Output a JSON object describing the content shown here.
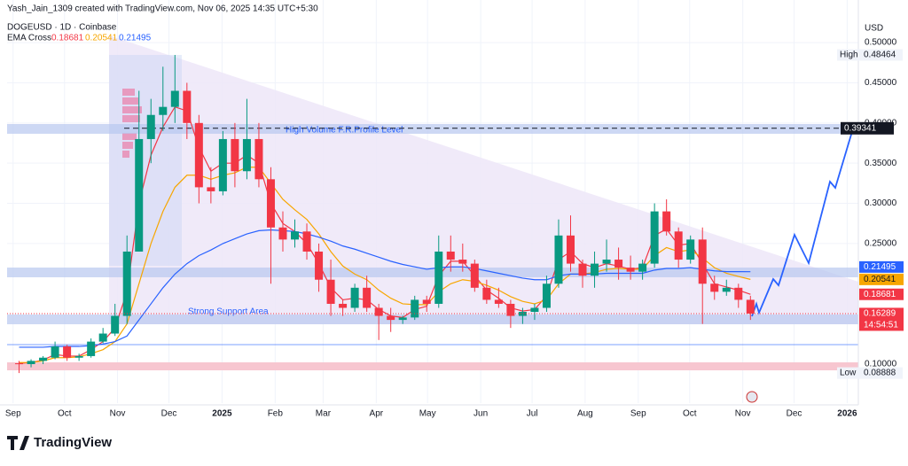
{
  "header": {
    "credit": "Yash_Jain_1309 created with TradingView.com, Nov 06, 2025 14:35 UTC+5:30",
    "symbol": "DOGEUSD · 1D · Coinbase",
    "indicator": "EMA Cross"
  },
  "chart_data": {
    "type": "candlestick",
    "currency": "USD",
    "categories": [
      null,
      null,
      null,
      null,
      null,
      null,
      null,
      null,
      null,
      null,
      null,
      null,
      null,
      null,
      null,
      null,
      null,
      null,
      null,
      null,
      null,
      null,
      null,
      null,
      null,
      null,
      null,
      null,
      null,
      null,
      null,
      null,
      null,
      null,
      null,
      null,
      null,
      null,
      null,
      null,
      null,
      null,
      null,
      null,
      null,
      null,
      null,
      null,
      null,
      null,
      null,
      null,
      null,
      null,
      null,
      null,
      null,
      null,
      null,
      null,
      null,
      null
    ],
    "open": [
      0.101,
      0.1,
      0.104,
      0.108,
      0.122,
      0.108,
      0.11,
      0.128,
      0.138,
      0.16,
      0.24,
      0.38,
      0.41,
      0.42,
      0.44,
      0.4,
      0.32,
      0.315,
      0.38,
      0.34,
      0.38,
      0.33,
      0.27,
      0.255,
      0.265,
      0.24,
      0.205,
      0.175,
      0.17,
      0.195,
      0.17,
      0.16,
      0.155,
      0.158,
      0.18,
      0.175,
      0.24,
      0.23,
      0.225,
      0.195,
      0.18,
      0.175,
      0.16,
      0.165,
      0.17,
      0.2,
      0.26,
      0.225,
      0.21,
      0.225,
      0.23,
      0.22,
      0.215,
      0.225,
      0.29,
      0.265,
      0.23,
      0.255,
      0.2,
      0.19,
      0.195,
      0.18
    ],
    "high": [
      0.104,
      0.106,
      0.11,
      0.128,
      0.124,
      0.113,
      0.132,
      0.145,
      0.175,
      0.26,
      0.44,
      0.43,
      0.47,
      0.48464,
      0.45,
      0.41,
      0.345,
      0.39,
      0.4,
      0.43,
      0.4,
      0.345,
      0.29,
      0.28,
      0.275,
      0.25,
      0.23,
      0.18,
      0.2,
      0.21,
      0.175,
      0.17,
      0.16,
      0.185,
      0.185,
      0.26,
      0.26,
      0.25,
      0.23,
      0.205,
      0.195,
      0.18,
      0.17,
      0.175,
      0.21,
      0.28,
      0.285,
      0.23,
      0.24,
      0.255,
      0.245,
      0.235,
      0.23,
      0.3,
      0.305,
      0.27,
      0.26,
      0.27,
      0.21,
      0.205,
      0.2,
      0.185
    ],
    "low": [
      0.08888,
      0.096,
      0.1,
      0.106,
      0.104,
      0.104,
      0.108,
      0.126,
      0.135,
      0.15,
      0.24,
      0.35,
      0.39,
      0.4,
      0.38,
      0.3,
      0.3,
      0.31,
      0.32,
      0.33,
      0.32,
      0.2,
      0.24,
      0.245,
      0.23,
      0.19,
      0.16,
      0.16,
      0.165,
      0.165,
      0.13,
      0.14,
      0.15,
      0.155,
      0.165,
      0.17,
      0.215,
      0.215,
      0.19,
      0.175,
      0.17,
      0.145,
      0.15,
      0.155,
      0.165,
      0.195,
      0.215,
      0.195,
      0.195,
      0.215,
      0.205,
      0.205,
      0.205,
      0.22,
      0.26,
      0.22,
      0.225,
      0.15,
      0.18,
      0.185,
      0.17,
      0.155
    ],
    "close": [
      0.1,
      0.104,
      0.108,
      0.122,
      0.108,
      0.11,
      0.128,
      0.138,
      0.16,
      0.24,
      0.38,
      0.41,
      0.42,
      0.44,
      0.4,
      0.32,
      0.315,
      0.38,
      0.34,
      0.38,
      0.33,
      0.27,
      0.255,
      0.265,
      0.24,
      0.205,
      0.175,
      0.17,
      0.195,
      0.17,
      0.16,
      0.155,
      0.158,
      0.18,
      0.175,
      0.24,
      0.23,
      0.225,
      0.195,
      0.18,
      0.175,
      0.16,
      0.165,
      0.17,
      0.2,
      0.26,
      0.225,
      0.21,
      0.225,
      0.23,
      0.22,
      0.215,
      0.225,
      0.29,
      0.265,
      0.23,
      0.255,
      0.2,
      0.19,
      0.195,
      0.18,
      0.16289
    ],
    "up_color": "#089981",
    "down_color": "#f23645",
    "ema_lines": [
      {
        "color": "#f23645",
        "values": [
          0.101,
          0.102,
          0.105,
          0.112,
          0.11,
          0.11,
          0.118,
          0.128,
          0.145,
          0.19,
          0.3,
          0.36,
          0.395,
          0.42,
          0.415,
          0.37,
          0.34,
          0.35,
          0.35,
          0.36,
          0.35,
          0.3,
          0.275,
          0.265,
          0.25,
          0.225,
          0.195,
          0.18,
          0.182,
          0.18,
          0.168,
          0.16,
          0.158,
          0.168,
          0.172,
          0.21,
          0.228,
          0.228,
          0.21,
          0.192,
          0.182,
          0.17,
          0.166,
          0.168,
          0.185,
          0.23,
          0.24,
          0.225,
          0.22,
          0.225,
          0.222,
          0.218,
          0.22,
          0.26,
          0.268,
          0.248,
          0.25,
          0.225,
          0.2,
          0.196,
          0.192,
          0.18681
        ]
      },
      {
        "color": "#f7a600",
        "values": [
          0.102,
          0.102,
          0.104,
          0.108,
          0.108,
          0.109,
          0.113,
          0.118,
          0.128,
          0.15,
          0.2,
          0.25,
          0.29,
          0.32,
          0.335,
          0.335,
          0.33,
          0.335,
          0.338,
          0.345,
          0.345,
          0.325,
          0.305,
          0.292,
          0.28,
          0.262,
          0.24,
          0.222,
          0.212,
          0.205,
          0.192,
          0.182,
          0.175,
          0.174,
          0.174,
          0.19,
          0.2,
          0.205,
          0.203,
          0.198,
          0.192,
          0.184,
          0.178,
          0.175,
          0.18,
          0.2,
          0.212,
          0.212,
          0.214,
          0.218,
          0.219,
          0.218,
          0.218,
          0.235,
          0.245,
          0.24,
          0.242,
          0.232,
          0.22,
          0.213,
          0.209,
          0.20541
        ]
      },
      {
        "color": "#2962ff",
        "values": [
          0.121,
          0.121,
          0.121,
          0.122,
          0.122,
          0.122,
          0.123,
          0.125,
          0.128,
          0.135,
          0.155,
          0.175,
          0.195,
          0.212,
          0.225,
          0.235,
          0.242,
          0.25,
          0.256,
          0.262,
          0.266,
          0.267,
          0.266,
          0.265,
          0.262,
          0.258,
          0.253,
          0.247,
          0.243,
          0.238,
          0.233,
          0.228,
          0.224,
          0.221,
          0.218,
          0.22,
          0.221,
          0.221,
          0.219,
          0.216,
          0.213,
          0.21,
          0.207,
          0.205,
          0.205,
          0.21,
          0.212,
          0.212,
          0.212,
          0.213,
          0.213,
          0.213,
          0.213,
          0.217,
          0.219,
          0.219,
          0.22,
          0.218,
          0.216,
          0.215,
          0.215,
          0.21495
        ]
      }
    ],
    "xlim": [
      -0.5,
      70.5
    ],
    "xticks": [
      {
        "value": 0,
        "label": "Sep"
      },
      {
        "value": 4.29,
        "label": "Oct"
      },
      {
        "value": 8.71,
        "label": "Nov"
      },
      {
        "value": 13,
        "label": "Dec"
      },
      {
        "value": 17.43,
        "label": "2025"
      },
      {
        "value": 21.86,
        "label": "Feb"
      },
      {
        "value": 25.86,
        "label": "Mar"
      },
      {
        "value": 30.29,
        "label": "Apr"
      },
      {
        "value": 34.57,
        "label": "May"
      },
      {
        "value": 39,
        "label": "Jun"
      },
      {
        "value": 43.29,
        "label": "Jul"
      },
      {
        "value": 47.71,
        "label": "Aug"
      },
      {
        "value": 52.14,
        "label": "Sep"
      },
      {
        "value": 56.43,
        "label": "Oct"
      },
      {
        "value": 60.86,
        "label": "Nov"
      },
      {
        "value": 65.14,
        "label": "Dec"
      },
      {
        "value": 69.57,
        "label": "2026"
      }
    ],
    "ylim": [
      0.0515,
      0.553
    ],
    "yticks": [
      {
        "value": 0.5,
        "label": "0.50000"
      },
      {
        "value": 0.45,
        "label": "0.45000"
      },
      {
        "value": 0.4,
        "label": "0.40000"
      },
      {
        "value": 0.35,
        "label": "0.35000"
      },
      {
        "value": 0.3,
        "label": "0.30000"
      },
      {
        "value": 0.25,
        "label": "0.25000"
      },
      {
        "value": 0.1,
        "label": "0.10000"
      }
    ],
    "grid": true,
    "resistance_level": 0.39341,
    "high_marker": {
      "label": "High",
      "value": 0.48464
    },
    "low_marker": {
      "label": "Low",
      "value": 0.08888
    },
    "countdown": "14:54:51",
    "annotations": [
      "High Volume F.R.Profile Level",
      "Strong Support Area"
    ]
  },
  "footer": {
    "brand": "TradingView"
  }
}
